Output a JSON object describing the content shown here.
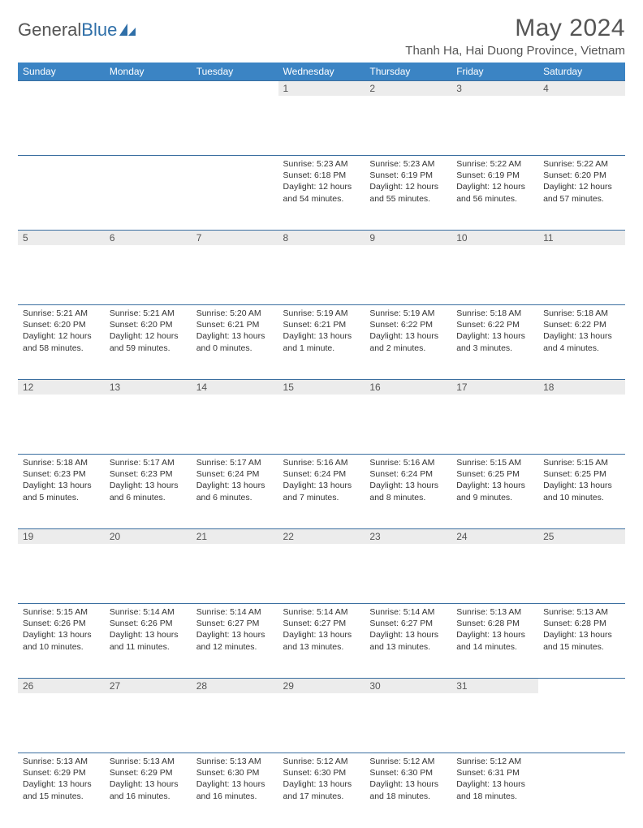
{
  "brand": {
    "word1": "General",
    "word2": "Blue"
  },
  "header": {
    "month_title": "May 2024",
    "location": "Thanh Ha, Hai Duong Province, Vietnam"
  },
  "colors": {
    "header_bg": "#3b84c4",
    "header_text": "#ffffff",
    "daynum_bg": "#ececec",
    "border": "#3b6fa0",
    "text_muted": "#555555",
    "body_text": "#333333"
  },
  "weekdays": [
    "Sunday",
    "Monday",
    "Tuesday",
    "Wednesday",
    "Thursday",
    "Friday",
    "Saturday"
  ],
  "weeks": [
    [
      null,
      null,
      null,
      {
        "n": "1",
        "sr": "5:23 AM",
        "ss": "6:18 PM",
        "dl": "12 hours and 54 minutes."
      },
      {
        "n": "2",
        "sr": "5:23 AM",
        "ss": "6:19 PM",
        "dl": "12 hours and 55 minutes."
      },
      {
        "n": "3",
        "sr": "5:22 AM",
        "ss": "6:19 PM",
        "dl": "12 hours and 56 minutes."
      },
      {
        "n": "4",
        "sr": "5:22 AM",
        "ss": "6:20 PM",
        "dl": "12 hours and 57 minutes."
      }
    ],
    [
      {
        "n": "5",
        "sr": "5:21 AM",
        "ss": "6:20 PM",
        "dl": "12 hours and 58 minutes."
      },
      {
        "n": "6",
        "sr": "5:21 AM",
        "ss": "6:20 PM",
        "dl": "12 hours and 59 minutes."
      },
      {
        "n": "7",
        "sr": "5:20 AM",
        "ss": "6:21 PM",
        "dl": "13 hours and 0 minutes."
      },
      {
        "n": "8",
        "sr": "5:19 AM",
        "ss": "6:21 PM",
        "dl": "13 hours and 1 minute."
      },
      {
        "n": "9",
        "sr": "5:19 AM",
        "ss": "6:22 PM",
        "dl": "13 hours and 2 minutes."
      },
      {
        "n": "10",
        "sr": "5:18 AM",
        "ss": "6:22 PM",
        "dl": "13 hours and 3 minutes."
      },
      {
        "n": "11",
        "sr": "5:18 AM",
        "ss": "6:22 PM",
        "dl": "13 hours and 4 minutes."
      }
    ],
    [
      {
        "n": "12",
        "sr": "5:18 AM",
        "ss": "6:23 PM",
        "dl": "13 hours and 5 minutes."
      },
      {
        "n": "13",
        "sr": "5:17 AM",
        "ss": "6:23 PM",
        "dl": "13 hours and 6 minutes."
      },
      {
        "n": "14",
        "sr": "5:17 AM",
        "ss": "6:24 PM",
        "dl": "13 hours and 6 minutes."
      },
      {
        "n": "15",
        "sr": "5:16 AM",
        "ss": "6:24 PM",
        "dl": "13 hours and 7 minutes."
      },
      {
        "n": "16",
        "sr": "5:16 AM",
        "ss": "6:24 PM",
        "dl": "13 hours and 8 minutes."
      },
      {
        "n": "17",
        "sr": "5:15 AM",
        "ss": "6:25 PM",
        "dl": "13 hours and 9 minutes."
      },
      {
        "n": "18",
        "sr": "5:15 AM",
        "ss": "6:25 PM",
        "dl": "13 hours and 10 minutes."
      }
    ],
    [
      {
        "n": "19",
        "sr": "5:15 AM",
        "ss": "6:26 PM",
        "dl": "13 hours and 10 minutes."
      },
      {
        "n": "20",
        "sr": "5:14 AM",
        "ss": "6:26 PM",
        "dl": "13 hours and 11 minutes."
      },
      {
        "n": "21",
        "sr": "5:14 AM",
        "ss": "6:27 PM",
        "dl": "13 hours and 12 minutes."
      },
      {
        "n": "22",
        "sr": "5:14 AM",
        "ss": "6:27 PM",
        "dl": "13 hours and 13 minutes."
      },
      {
        "n": "23",
        "sr": "5:14 AM",
        "ss": "6:27 PM",
        "dl": "13 hours and 13 minutes."
      },
      {
        "n": "24",
        "sr": "5:13 AM",
        "ss": "6:28 PM",
        "dl": "13 hours and 14 minutes."
      },
      {
        "n": "25",
        "sr": "5:13 AM",
        "ss": "6:28 PM",
        "dl": "13 hours and 15 minutes."
      }
    ],
    [
      {
        "n": "26",
        "sr": "5:13 AM",
        "ss": "6:29 PM",
        "dl": "13 hours and 15 minutes."
      },
      {
        "n": "27",
        "sr": "5:13 AM",
        "ss": "6:29 PM",
        "dl": "13 hours and 16 minutes."
      },
      {
        "n": "28",
        "sr": "5:13 AM",
        "ss": "6:30 PM",
        "dl": "13 hours and 16 minutes."
      },
      {
        "n": "29",
        "sr": "5:12 AM",
        "ss": "6:30 PM",
        "dl": "13 hours and 17 minutes."
      },
      {
        "n": "30",
        "sr": "5:12 AM",
        "ss": "6:30 PM",
        "dl": "13 hours and 18 minutes."
      },
      {
        "n": "31",
        "sr": "5:12 AM",
        "ss": "6:31 PM",
        "dl": "13 hours and 18 minutes."
      },
      null
    ]
  ],
  "labels": {
    "sunrise": "Sunrise:",
    "sunset": "Sunset:",
    "daylight": "Daylight:"
  }
}
